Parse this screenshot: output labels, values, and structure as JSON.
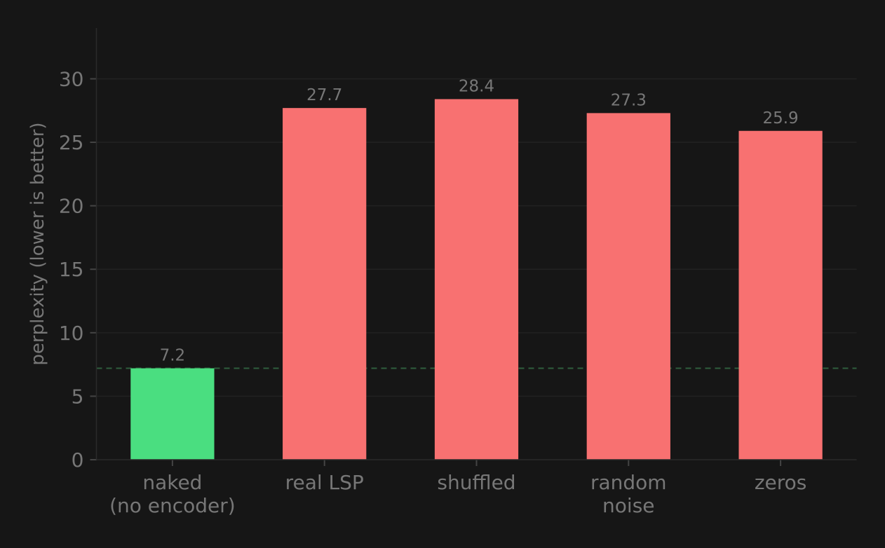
{
  "chart_data": {
    "type": "bar",
    "categories": [
      [
        "naked",
        "(no encoder)"
      ],
      [
        "real LSP"
      ],
      [
        "shuffled"
      ],
      [
        "random",
        "noise"
      ],
      [
        "zeros"
      ]
    ],
    "values": [
      7.2,
      27.7,
      28.4,
      27.3,
      25.9
    ],
    "data_labels": [
      "7.2",
      "27.7",
      "28.4",
      "27.3",
      "25.9"
    ],
    "colors": [
      "#4ade80",
      "#f87171",
      "#f87171",
      "#f87171",
      "#f87171"
    ],
    "title": "",
    "xlabel": "",
    "ylabel": "perplexity (lower is better)",
    "ylim": [
      0,
      34
    ],
    "yticks": [
      0,
      5,
      10,
      15,
      20,
      25,
      30
    ],
    "grid": "horizontal",
    "reference_line": {
      "y": 7.2,
      "style": "dashed",
      "color": "#2f5e3d"
    },
    "background": "#161616"
  }
}
